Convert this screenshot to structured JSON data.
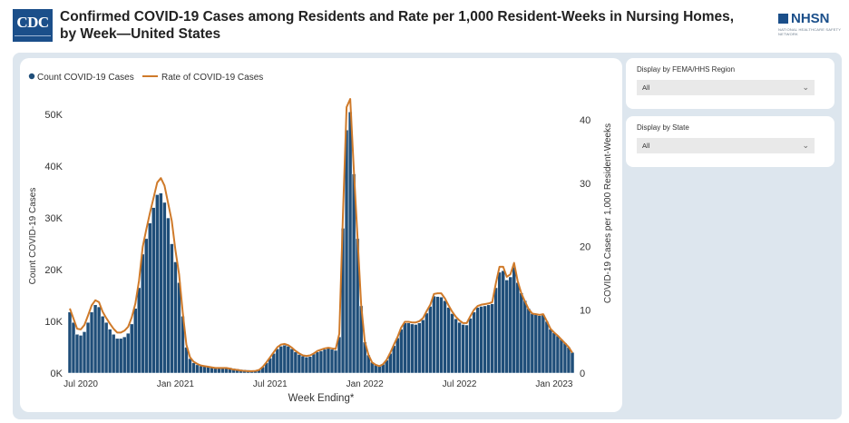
{
  "header": {
    "logo_text": "CDC",
    "title": "Confirmed COVID-19 Cases among Residents and Rate per 1,000 Resident-Weeks in Nursing Homes, by Week—United States",
    "nhsn_logo_text": "NHSN",
    "nhsn_tagline": "NATIONAL HEALTHCARE SAFETY NETWORK"
  },
  "filters": [
    {
      "label": "Display by FEMA/HHS Region",
      "value": "All"
    },
    {
      "label": "Display by State",
      "value": "All"
    }
  ],
  "colors": {
    "bar": "#1f4e79",
    "bar_stroke": "#ffffff",
    "line": "#cf7a2a",
    "panel": "#dde6ee"
  },
  "chart_data": {
    "type": "bar",
    "title": "",
    "xlabel": "Week Ending*",
    "ylabel": "Count COVID-19 Cases",
    "y2label": "COVID-19 Cases per 1,000 Resident-Weeks",
    "ylim": [
      0,
      53000
    ],
    "y2lim": [
      0,
      43.3
    ],
    "yticks": [
      {
        "value": 0,
        "label": "0K"
      },
      {
        "value": 10000,
        "label": "10K"
      },
      {
        "value": 20000,
        "label": "20K"
      },
      {
        "value": 30000,
        "label": "30K"
      },
      {
        "value": 40000,
        "label": "40K"
      },
      {
        "value": 50000,
        "label": "50K"
      }
    ],
    "y2ticks": [
      {
        "value": 0,
        "label": "0"
      },
      {
        "value": 10,
        "label": "10"
      },
      {
        "value": 20,
        "label": "20"
      },
      {
        "value": 30,
        "label": "30"
      },
      {
        "value": 40,
        "label": "40"
      }
    ],
    "xticks": [
      {
        "week": 3,
        "label": "Jul 2020"
      },
      {
        "week": 29,
        "label": "Jan 2021"
      },
      {
        "week": 55,
        "label": "Jul 2021"
      },
      {
        "week": 81,
        "label": "Jan 2022"
      },
      {
        "week": 107,
        "label": "Jul 2022"
      },
      {
        "week": 133,
        "label": "Jan 2023"
      }
    ],
    "grid": false,
    "legend": {
      "position": "top-left",
      "items": [
        {
          "label": "Count COVID-19 Cases",
          "kind": "bar"
        },
        {
          "label": "Rate of COVID-19 Cases",
          "kind": "line"
        }
      ]
    },
    "series": [
      {
        "name": "Count COVID-19 Cases",
        "axis": "left",
        "values": [
          11800,
          9800,
          7500,
          7300,
          8000,
          9800,
          11800,
          13200,
          12800,
          11000,
          9800,
          8500,
          7500,
          6700,
          6700,
          7000,
          7700,
          9500,
          12500,
          16500,
          23000,
          26000,
          29000,
          32000,
          34500,
          34800,
          33000,
          30000,
          25000,
          21500,
          17500,
          11000,
          5000,
          2800,
          2000,
          1600,
          1400,
          1300,
          1200,
          1100,
          1050,
          1050,
          1100,
          1100,
          1050,
          900,
          800,
          700,
          650,
          600,
          550,
          550,
          700,
          1200,
          2000,
          2900,
          3800,
          4700,
          5200,
          5400,
          5200,
          4700,
          4100,
          3600,
          3300,
          3100,
          3200,
          3700,
          4100,
          4300,
          4600,
          4800,
          4600,
          4400,
          7000,
          28000,
          47000,
          50500,
          38500,
          26000,
          13000,
          6000,
          3500,
          2100,
          1600,
          1300,
          1700,
          2500,
          3800,
          5300,
          6800,
          8500,
          9700,
          9700,
          9500,
          9400,
          9700,
          10300,
          11600,
          12900,
          14900,
          14800,
          14700,
          14000,
          12700,
          11500,
          10500,
          9800,
          9400,
          9300,
          10600,
          11800,
          12700,
          12900,
          13000,
          13200,
          13400,
          16500,
          19500,
          19800,
          18000,
          18600,
          20500,
          17500,
          15500,
          14000,
          12500,
          11500,
          11300,
          11100,
          11300,
          10000,
          8500,
          7800,
          7200,
          6500,
          5800,
          5000,
          4000
        ],
        "values_display": "bars"
      },
      {
        "name": "Rate of COVID-19 Cases",
        "axis": "right",
        "values": [
          10.2,
          8.6,
          7.0,
          6.9,
          7.6,
          9.1,
          10.7,
          11.5,
          11.2,
          9.7,
          8.7,
          7.8,
          7.0,
          6.4,
          6.4,
          6.7,
          7.3,
          8.8,
          11.0,
          14.6,
          19.9,
          22.7,
          25.3,
          27.7,
          30.1,
          30.8,
          29.6,
          26.8,
          24.0,
          19.4,
          15.6,
          9.6,
          4.5,
          2.5,
          1.8,
          1.45,
          1.2,
          1.1,
          1.0,
          0.9,
          0.8,
          0.8,
          0.8,
          0.8,
          0.7,
          0.55,
          0.5,
          0.4,
          0.35,
          0.3,
          0.3,
          0.35,
          0.5,
          1.0,
          1.7,
          2.5,
          3.3,
          4.1,
          4.5,
          4.6,
          4.4,
          4.0,
          3.5,
          3.1,
          2.8,
          2.7,
          2.8,
          3.1,
          3.5,
          3.7,
          3.9,
          4.0,
          3.9,
          3.8,
          6.2,
          25.0,
          42.0,
          43.3,
          32.0,
          21.5,
          10.8,
          5.0,
          2.9,
          1.7,
          1.3,
          1.1,
          1.4,
          2.1,
          3.2,
          4.5,
          5.7,
          7.2,
          8.1,
          8.1,
          8.0,
          8.0,
          8.2,
          8.7,
          9.8,
          10.8,
          12.5,
          12.6,
          12.6,
          11.8,
          10.7,
          9.7,
          8.9,
          8.3,
          7.9,
          7.9,
          9.0,
          10.0,
          10.6,
          10.8,
          10.9,
          11.0,
          11.2,
          14.2,
          16.8,
          16.8,
          15.2,
          15.6,
          17.4,
          14.5,
          12.6,
          11.3,
          10.1,
          9.4,
          9.3,
          9.2,
          9.3,
          8.2,
          7.0,
          6.4,
          5.9,
          5.3,
          4.7,
          4.1,
          3.2
        ],
        "values_display": "line"
      }
    ]
  }
}
